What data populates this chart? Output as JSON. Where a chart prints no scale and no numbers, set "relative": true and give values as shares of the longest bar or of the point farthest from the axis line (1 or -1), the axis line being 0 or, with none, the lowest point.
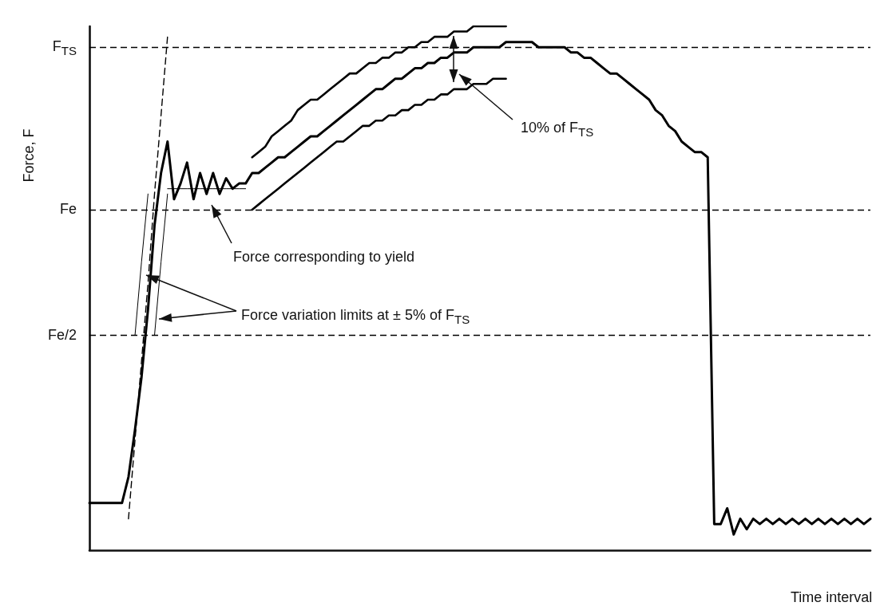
{
  "chart_data": {
    "type": "line",
    "relative": true,
    "marker": "none",
    "grid": false,
    "xlabel": "Time interval",
    "ylabel": "Force, F",
    "categories": [
      null,
      null,
      null,
      null,
      null,
      null,
      null,
      null,
      null,
      null,
      null,
      null,
      null,
      null,
      null,
      null,
      null,
      null,
      null,
      null,
      null,
      null,
      null,
      null,
      null,
      null,
      null,
      null,
      null,
      null,
      null,
      null,
      null,
      null,
      null,
      null,
      null,
      null,
      null,
      null,
      null,
      null,
      null,
      null,
      null,
      null,
      null,
      null,
      null,
      null,
      null,
      null,
      null,
      null,
      null,
      null,
      null,
      null,
      null,
      null,
      null,
      null,
      null,
      null,
      null,
      null,
      null,
      null,
      null,
      null,
      null,
      null,
      null,
      null,
      null,
      null,
      null,
      null,
      null,
      null,
      null,
      null,
      null,
      null,
      null,
      null,
      null,
      null,
      null,
      null,
      null,
      null,
      null,
      null,
      null,
      null,
      null,
      null,
      null,
      null,
      null,
      null,
      null,
      null,
      null,
      null,
      null,
      null,
      null,
      null,
      null,
      null,
      null,
      null,
      null,
      null,
      null,
      null,
      null,
      null,
      null
    ],
    "series": [
      {
        "color": "#000000",
        "line_style": "solid",
        "values": [
          0.09,
          0.09,
          0.09,
          0.09,
          0.09,
          0.09,
          0.14,
          0.23,
          0.33,
          0.46,
          0.62,
          0.72,
          0.78,
          0.67,
          0.7,
          0.74,
          0.67,
          0.72,
          0.68,
          0.72,
          0.68,
          0.71,
          0.69,
          0.7,
          0.7,
          0.72,
          0.72,
          0.73,
          0.74,
          0.75,
          0.75,
          0.76,
          0.77,
          0.78,
          0.79,
          0.79,
          0.8,
          0.81,
          0.82,
          0.83,
          0.84,
          0.85,
          0.86,
          0.87,
          0.88,
          0.88,
          0.89,
          0.9,
          0.9,
          0.91,
          0.92,
          0.92,
          0.93,
          0.93,
          0.94,
          0.94,
          0.95,
          0.95,
          0.95,
          0.96,
          0.96,
          0.96,
          0.96,
          0.96,
          0.97,
          0.97,
          0.97,
          0.97,
          0.97,
          0.96,
          0.96,
          0.96,
          0.96,
          0.96,
          0.95,
          0.95,
          0.94,
          0.94,
          0.93,
          0.92,
          0.91,
          0.91,
          0.9,
          0.89,
          0.88,
          0.87,
          0.86,
          0.84,
          0.83,
          0.81,
          0.8,
          0.78,
          0.77,
          0.76,
          0.76,
          0.75,
          0.05,
          0.05,
          0.08,
          0.03,
          0.06,
          0.04,
          0.06,
          0.05,
          0.06,
          0.05,
          0.06,
          0.05,
          0.06,
          0.05,
          0.06,
          0.05,
          0.06,
          0.05,
          0.06,
          0.05,
          0.06,
          0.05,
          0.06,
          0.05,
          0.06
        ]
      },
      {
        "color": "#000000",
        "line_style": "solid",
        "values": [
          null,
          null,
          null,
          null,
          null,
          null,
          null,
          null,
          null,
          null,
          null,
          null,
          null,
          null,
          null,
          null,
          null,
          null,
          null,
          null,
          null,
          null,
          null,
          null,
          null,
          0.75,
          0.76,
          0.77,
          0.79,
          0.8,
          0.81,
          0.82,
          0.84,
          0.85,
          0.86,
          0.86,
          0.87,
          0.88,
          0.89,
          0.9,
          0.91,
          0.91,
          0.92,
          0.93,
          0.93,
          0.94,
          0.94,
          0.95,
          0.95,
          0.96,
          0.96,
          0.97,
          0.97,
          0.98,
          0.98,
          0.98,
          0.99,
          0.99,
          0.99,
          1.0,
          1.0,
          1.0,
          1.0,
          1.0,
          1.0,
          null,
          null,
          null,
          null,
          null,
          null,
          null,
          null,
          null,
          null,
          null,
          null,
          null,
          null,
          null,
          null,
          null,
          null,
          null,
          null,
          null,
          null,
          null,
          null,
          null,
          null,
          null,
          null,
          null,
          null,
          null,
          null,
          null,
          null,
          null,
          null,
          null,
          null,
          null,
          null,
          null,
          null,
          null,
          null,
          null,
          null,
          null,
          null,
          null,
          null,
          null,
          null,
          null,
          null,
          null,
          null
        ]
      },
      {
        "color": "#000000",
        "line_style": "solid",
        "values": [
          null,
          null,
          null,
          null,
          null,
          null,
          null,
          null,
          null,
          null,
          null,
          null,
          null,
          null,
          null,
          null,
          null,
          null,
          null,
          null,
          null,
          null,
          null,
          null,
          null,
          0.65,
          0.66,
          0.67,
          0.68,
          0.69,
          0.7,
          0.71,
          0.72,
          0.73,
          0.74,
          0.75,
          0.76,
          0.77,
          0.78,
          0.78,
          0.79,
          0.8,
          0.81,
          0.81,
          0.82,
          0.82,
          0.83,
          0.83,
          0.84,
          0.84,
          0.85,
          0.85,
          0.86,
          0.86,
          0.87,
          0.87,
          0.88,
          0.88,
          0.88,
          0.89,
          0.89,
          0.89,
          0.9,
          0.9,
          0.9,
          null,
          null,
          null,
          null,
          null,
          null,
          null,
          null,
          null,
          null,
          null,
          null,
          null,
          null,
          null,
          null,
          null,
          null,
          null,
          null,
          null,
          null,
          null,
          null,
          null,
          null,
          null,
          null,
          null,
          null,
          null,
          null,
          null,
          null,
          null,
          null,
          null,
          null,
          null,
          null,
          null,
          null,
          null,
          null,
          null,
          null,
          null,
          null,
          null,
          null,
          null,
          null,
          null,
          null,
          null,
          null
        ]
      },
      {
        "color": "#000000",
        "line_style": "dashed",
        "values": [
          null,
          null,
          null,
          null,
          null,
          null,
          0.06,
          0.21,
          0.36,
          0.51,
          0.68,
          0.83,
          0.98,
          null,
          null,
          null,
          null,
          null,
          null,
          null,
          null,
          null,
          null,
          null,
          null,
          null,
          null,
          null,
          null,
          null,
          null,
          null,
          null,
          null,
          null,
          null,
          null,
          null,
          null,
          null,
          null,
          null,
          null,
          null,
          null,
          null,
          null,
          null,
          null,
          null,
          null,
          null,
          null,
          null,
          null,
          null,
          null,
          null,
          null,
          null,
          null,
          null,
          null,
          null,
          null,
          null,
          null,
          null,
          null,
          null,
          null,
          null,
          null,
          null,
          null,
          null,
          null,
          null,
          null,
          null,
          null,
          null,
          null,
          null,
          null,
          null,
          null,
          null,
          null,
          null,
          null,
          null,
          null,
          null,
          null,
          null,
          null,
          null,
          null,
          null,
          null,
          null,
          null,
          null,
          null,
          null,
          null,
          null,
          null,
          null,
          null,
          null,
          null,
          null,
          null,
          null,
          null,
          null,
          null,
          null,
          null
        ]
      },
      {
        "color": "#000000",
        "line_style": "solid",
        "values": [
          null,
          null,
          null,
          null,
          null,
          null,
          null,
          0.41,
          0.55,
          0.68,
          null,
          null,
          null,
          null,
          null,
          null,
          null,
          null,
          null,
          null,
          null,
          null,
          null,
          null,
          null,
          null,
          null,
          null,
          null,
          null,
          null,
          null,
          null,
          null,
          null,
          null,
          null,
          null,
          null,
          null,
          null,
          null,
          null,
          null,
          null,
          null,
          null,
          null,
          null,
          null,
          null,
          null,
          null,
          null,
          null,
          null,
          null,
          null,
          null,
          null,
          null,
          null,
          null,
          null,
          null,
          null,
          null,
          null,
          null,
          null,
          null,
          null,
          null,
          null,
          null,
          null,
          null,
          null,
          null,
          null,
          null,
          null,
          null,
          null,
          null,
          null,
          null,
          null,
          null,
          null,
          null,
          null,
          null,
          null,
          null,
          null,
          null,
          null,
          null,
          null,
          null,
          null,
          null,
          null,
          null,
          null,
          null,
          null,
          null,
          null,
          null,
          null,
          null,
          null,
          null,
          null,
          null,
          null,
          null,
          null,
          null
        ]
      },
      {
        "color": "#000000",
        "line_style": "solid",
        "values": [
          null,
          null,
          null,
          null,
          null,
          null,
          null,
          null,
          null,
          null,
          0.41,
          0.55,
          0.68,
          null,
          null,
          null,
          null,
          null,
          null,
          null,
          null,
          null,
          null,
          null,
          null,
          null,
          null,
          null,
          null,
          null,
          null,
          null,
          null,
          null,
          null,
          null,
          null,
          null,
          null,
          null,
          null,
          null,
          null,
          null,
          null,
          null,
          null,
          null,
          null,
          null,
          null,
          null,
          null,
          null,
          null,
          null,
          null,
          null,
          null,
          null,
          null,
          null,
          null,
          null,
          null,
          null,
          null,
          null,
          null,
          null,
          null,
          null,
          null,
          null,
          null,
          null,
          null,
          null,
          null,
          null,
          null,
          null,
          null,
          null,
          null,
          null,
          null,
          null,
          null,
          null,
          null,
          null,
          null,
          null,
          null,
          null,
          null,
          null,
          null,
          null,
          null,
          null,
          null,
          null,
          null,
          null,
          null,
          null,
          null,
          null,
          null,
          null,
          null,
          null,
          null,
          null,
          null,
          null,
          null,
          null,
          null
        ]
      },
      {
        "color": "#000000",
        "line_style": "solid",
        "values": [
          null,
          null,
          null,
          null,
          null,
          null,
          null,
          null,
          null,
          null,
          null,
          null,
          0.69,
          0.69,
          0.69,
          0.69,
          0.69,
          0.69,
          0.69,
          0.69,
          0.69,
          0.69,
          0.69,
          0.69,
          0.69,
          null,
          null,
          null,
          null,
          null,
          null,
          null,
          null,
          null,
          null,
          null,
          null,
          null,
          null,
          null,
          null,
          null,
          null,
          null,
          null,
          null,
          null,
          null,
          null,
          null,
          null,
          null,
          null,
          null,
          null,
          null,
          null,
          null,
          null,
          null,
          null,
          null,
          null,
          null,
          null,
          null,
          null,
          null,
          null,
          null,
          null,
          null,
          null,
          null,
          null,
          null,
          null,
          null,
          null,
          null,
          null,
          null,
          null,
          null,
          null,
          null,
          null,
          null,
          null,
          null,
          null,
          null,
          null,
          null,
          null,
          null,
          null,
          null,
          null,
          null,
          null,
          null,
          null,
          null,
          null,
          null,
          null,
          null,
          null,
          null,
          null,
          null,
          null,
          null,
          null,
          null,
          null,
          null,
          null,
          null,
          null
        ]
      }
    ],
    "ref_lines": [
      {
        "axis": "y",
        "value": 0.96,
        "label": "F$_{TS}$",
        "color": "#000000",
        "line_style": "dashed"
      },
      {
        "axis": "y",
        "value": 0.65,
        "label": "Fe",
        "color": "#000000",
        "line_style": "dashed"
      },
      {
        "axis": "y",
        "value": 0.41,
        "label": "Fe/2",
        "color": "#000000",
        "line_style": "dashed"
      }
    ],
    "annotations": [
      "Force corresponding to yield",
      "Force variation limits at  ± 5% of F$_{TS}$",
      "10% of F$_{TS}$"
    ]
  }
}
